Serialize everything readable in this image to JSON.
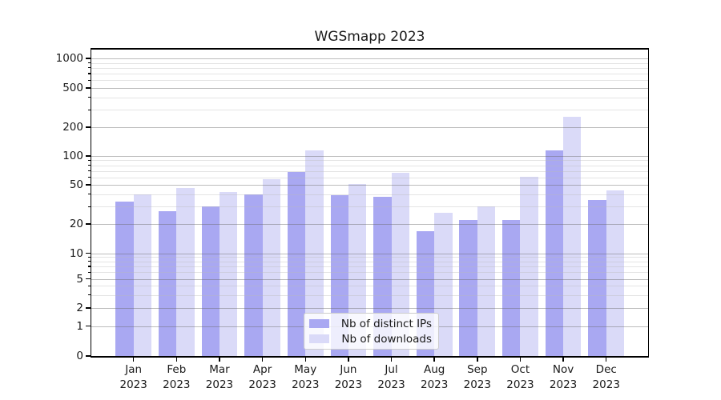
{
  "chart_data": {
    "type": "bar",
    "title": "WGSmapp 2023",
    "categories": [
      "Jan 2023",
      "Feb 2023",
      "Mar 2023",
      "Apr 2023",
      "May 2023",
      "Jun 2023",
      "Jul 2023",
      "Aug 2023",
      "Sep 2023",
      "Oct 2023",
      "Nov 2023",
      "Dec 2023"
    ],
    "series": [
      {
        "name": "Nb of distinct IPs",
        "color": "#a9a8f2",
        "values": [
          34,
          27,
          30,
          40,
          68,
          39,
          38,
          17,
          22,
          22,
          115,
          35
        ]
      },
      {
        "name": "Nb of downloads",
        "color": "#dadaf8",
        "values": [
          40,
          46,
          42,
          57,
          115,
          51,
          67,
          26,
          30,
          61,
          255,
          44
        ]
      }
    ],
    "xlabel": "",
    "ylabel": "",
    "yscale": "symlog",
    "yticks": [
      0,
      1,
      2,
      5,
      10,
      20,
      50,
      100,
      200,
      500,
      1000
    ],
    "ylim": [
      0,
      1250
    ],
    "grid": "horizontal, major and minor, drawn over bars",
    "legend_position": "lower center"
  },
  "colors": {
    "background": "#ffffff",
    "axis": "#000000",
    "text": "#1a1a1a",
    "major_grid": "#b8b8b8",
    "minor_grid": "#e8e8e8",
    "legend_border": "#cccccc"
  }
}
